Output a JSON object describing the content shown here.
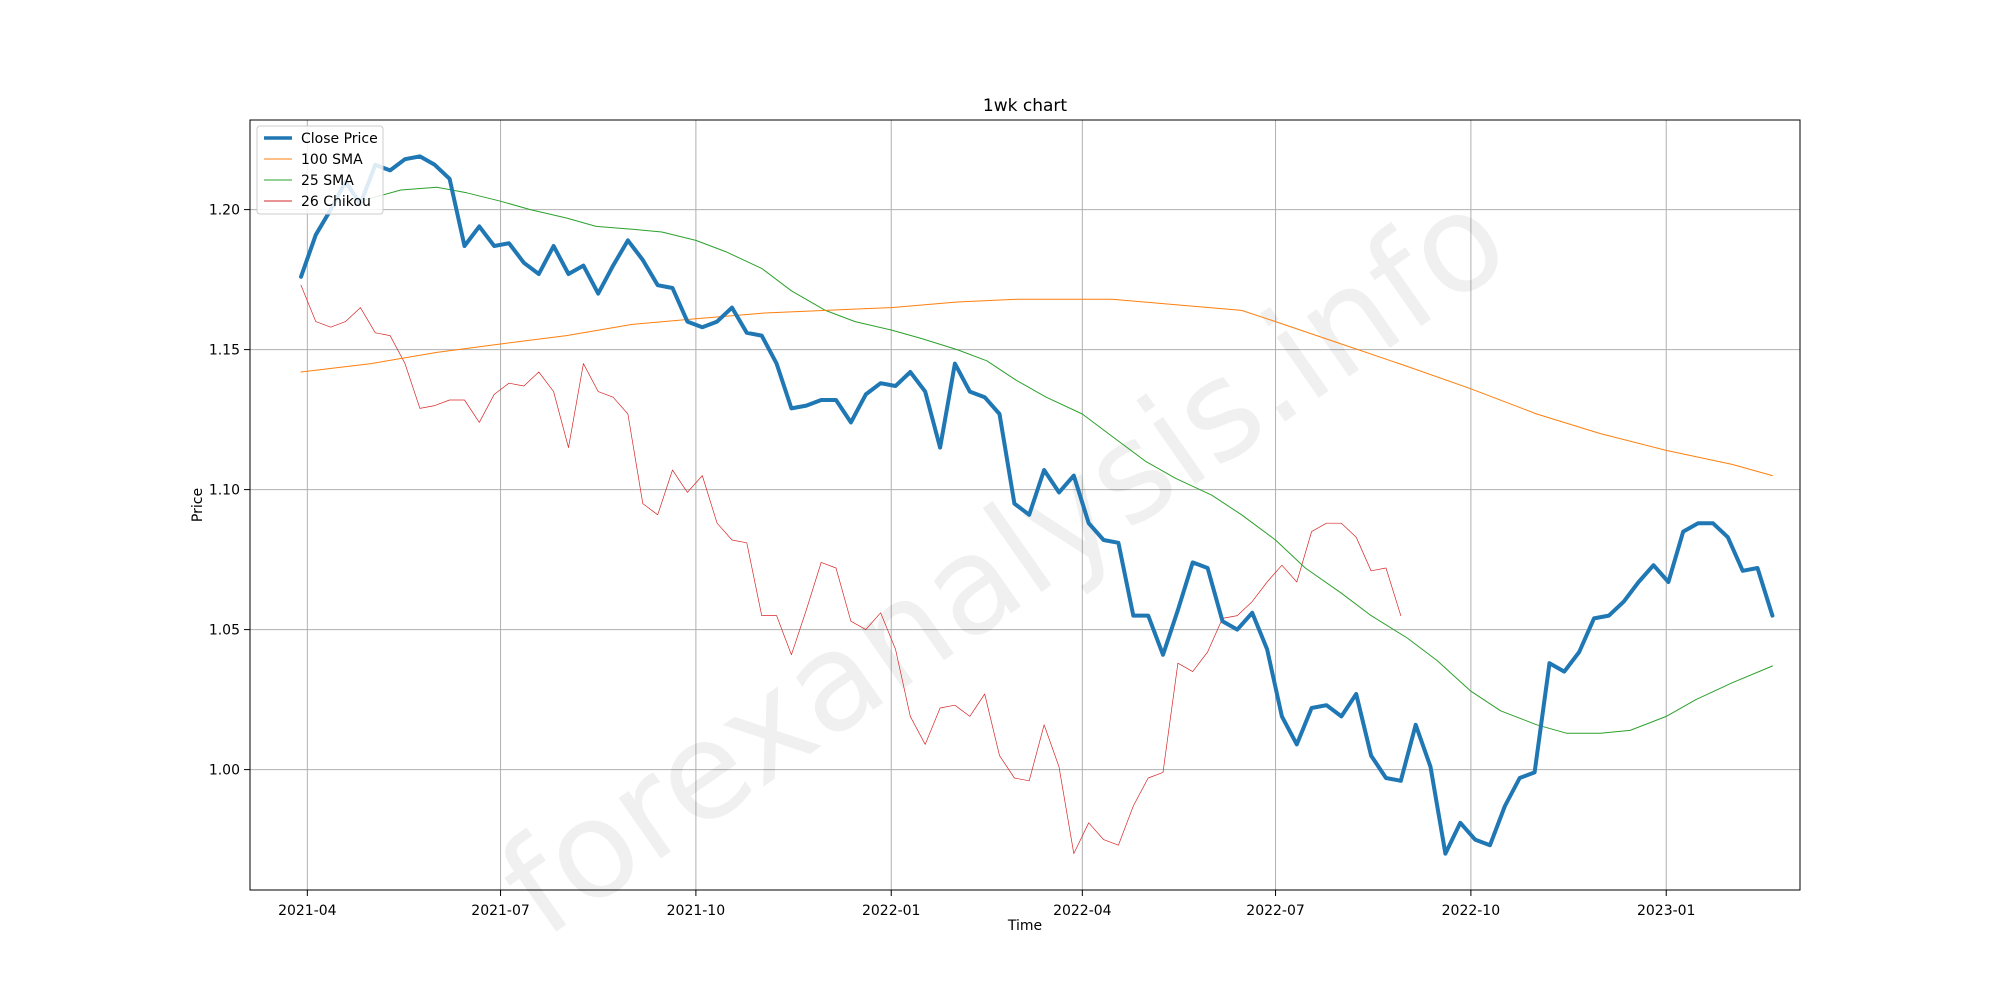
{
  "watermark": "forexanalysis.info",
  "colors": {
    "close": "#1f77b4",
    "sma100": "#ff7f0e",
    "sma25": "#2ca02c",
    "chikou": "#d62728",
    "grid": "#b0b0b0"
  },
  "chart_data": {
    "type": "line",
    "title": "1wk chart",
    "xlabel": "Time",
    "ylabel": "Price",
    "x_axis": {
      "type": "date",
      "range": [
        "2021-03-05",
        "2023-03-05"
      ],
      "ticks": [
        "2021-04-01",
        "2021-07-01",
        "2021-10-01",
        "2022-01-01",
        "2022-04-01",
        "2022-07-01",
        "2022-10-01",
        "2023-01-01"
      ],
      "tick_labels": [
        "2021-04",
        "2021-07",
        "2021-10",
        "2022-01",
        "2022-04",
        "2022-07",
        "2022-10",
        "2023-01"
      ]
    },
    "y_axis": {
      "range": [
        0.957,
        1.232
      ],
      "ticks": [
        1.0,
        1.05,
        1.1,
        1.15,
        1.2
      ],
      "tick_labels": [
        "1.00",
        "1.05",
        "1.10",
        "1.15",
        "1.20"
      ]
    },
    "grid": true,
    "legend": "top-left",
    "series": [
      {
        "name": "Close Price",
        "color_key": "close",
        "dates": [
          "2021-03-29",
          "2021-04-05",
          "2021-04-12",
          "2021-04-19",
          "2021-04-26",
          "2021-05-03",
          "2021-05-10",
          "2021-05-17",
          "2021-05-24",
          "2021-05-31",
          "2021-06-07",
          "2021-06-14",
          "2021-06-21",
          "2021-06-28",
          "2021-07-05",
          "2021-07-12",
          "2021-07-19",
          "2021-07-26",
          "2021-08-02",
          "2021-08-09",
          "2021-08-16",
          "2021-08-23",
          "2021-08-30",
          "2021-09-06",
          "2021-09-13",
          "2021-09-20",
          "2021-09-27",
          "2021-10-04",
          "2021-10-11",
          "2021-10-18",
          "2021-10-25",
          "2021-11-01",
          "2021-11-08",
          "2021-11-15",
          "2021-11-22",
          "2021-11-29",
          "2021-12-06",
          "2021-12-13",
          "2021-12-20",
          "2021-12-27",
          "2022-01-03",
          "2022-01-10",
          "2022-01-17",
          "2022-01-24",
          "2022-01-31",
          "2022-02-07",
          "2022-02-14",
          "2022-02-21",
          "2022-02-28",
          "2022-03-07",
          "2022-03-14",
          "2022-03-21",
          "2022-03-28",
          "2022-04-04",
          "2022-04-11",
          "2022-04-18",
          "2022-04-25",
          "2022-05-02",
          "2022-05-09",
          "2022-05-16",
          "2022-05-23",
          "2022-05-30",
          "2022-06-06",
          "2022-06-13",
          "2022-06-20",
          "2022-06-27",
          "2022-07-04",
          "2022-07-11",
          "2022-07-18",
          "2022-07-25",
          "2022-08-01",
          "2022-08-08",
          "2022-08-15",
          "2022-08-22",
          "2022-08-29",
          "2022-09-05",
          "2022-09-12",
          "2022-09-19",
          "2022-09-26",
          "2022-10-03",
          "2022-10-10",
          "2022-10-17",
          "2022-10-24",
          "2022-10-31",
          "2022-11-07",
          "2022-11-14",
          "2022-11-21",
          "2022-11-28",
          "2022-12-05",
          "2022-12-12",
          "2022-12-19",
          "2022-12-26",
          "2023-01-02",
          "2023-01-09",
          "2023-01-16",
          "2023-01-23",
          "2023-01-30",
          "2023-02-06",
          "2023-02-13",
          "2023-02-20"
        ],
        "values": [
          1.176,
          1.191,
          1.2,
          1.21,
          1.202,
          1.216,
          1.214,
          1.218,
          1.219,
          1.216,
          1.211,
          1.187,
          1.194,
          1.187,
          1.188,
          1.181,
          1.177,
          1.187,
          1.177,
          1.18,
          1.17,
          1.18,
          1.189,
          1.182,
          1.173,
          1.172,
          1.16,
          1.158,
          1.16,
          1.165,
          1.156,
          1.155,
          1.145,
          1.129,
          1.13,
          1.132,
          1.132,
          1.124,
          1.134,
          1.138,
          1.137,
          1.142,
          1.135,
          1.115,
          1.145,
          1.135,
          1.133,
          1.127,
          1.095,
          1.091,
          1.107,
          1.099,
          1.105,
          1.088,
          1.082,
          1.081,
          1.055,
          1.055,
          1.041,
          1.057,
          1.074,
          1.072,
          1.053,
          1.05,
          1.056,
          1.043,
          1.019,
          1.009,
          1.022,
          1.023,
          1.019,
          1.027,
          1.005,
          0.997,
          0.996,
          1.016,
          1.001,
          0.97,
          0.981,
          0.975,
          0.973,
          0.987,
          0.997,
          0.999,
          1.038,
          1.035,
          1.042,
          1.054,
          1.055,
          1.06,
          1.067,
          1.073,
          1.067,
          1.085,
          1.088,
          1.088,
          1.083,
          1.071,
          1.072,
          1.055
        ]
      },
      {
        "name": "100 SMA",
        "color_key": "sma100",
        "dates": [
          "2021-03-29",
          "2021-05-01",
          "2021-06-01",
          "2021-07-01",
          "2021-08-01",
          "2021-09-01",
          "2021-10-01",
          "2021-11-01",
          "2021-12-01",
          "2022-01-01",
          "2022-02-01",
          "2022-03-01",
          "2022-03-25",
          "2022-04-15",
          "2022-05-15",
          "2022-06-15",
          "2022-07-01",
          "2022-08-01",
          "2022-09-01",
          "2022-10-01",
          "2022-11-01",
          "2022-12-01",
          "2023-01-01",
          "2023-02-01",
          "2023-02-20"
        ],
        "values": [
          1.142,
          1.145,
          1.149,
          1.152,
          1.155,
          1.159,
          1.161,
          1.163,
          1.164,
          1.165,
          1.167,
          1.168,
          1.168,
          1.168,
          1.166,
          1.164,
          1.16,
          1.152,
          1.144,
          1.136,
          1.127,
          1.12,
          1.114,
          1.109,
          1.105
        ]
      },
      {
        "name": "25 SMA",
        "color_key": "sma25",
        "dates": [
          "2021-04-26",
          "2021-05-15",
          "2021-06-01",
          "2021-06-15",
          "2021-07-01",
          "2021-07-15",
          "2021-08-01",
          "2021-08-15",
          "2021-09-01",
          "2021-09-15",
          "2021-10-01",
          "2021-10-15",
          "2021-11-01",
          "2021-11-15",
          "2021-12-01",
          "2021-12-15",
          "2022-01-01",
          "2022-01-15",
          "2022-02-01",
          "2022-02-15",
          "2022-03-01",
          "2022-03-15",
          "2022-04-01",
          "2022-04-15",
          "2022-05-01",
          "2022-05-15",
          "2022-06-01",
          "2022-06-15",
          "2022-07-01",
          "2022-07-15",
          "2022-08-01",
          "2022-08-15",
          "2022-09-01",
          "2022-09-15",
          "2022-10-01",
          "2022-10-15",
          "2022-11-01",
          "2022-11-15",
          "2022-12-01",
          "2022-12-15",
          "2023-01-01",
          "2023-01-15",
          "2023-02-01",
          "2023-02-20"
        ],
        "values": [
          1.203,
          1.207,
          1.208,
          1.206,
          1.203,
          1.2,
          1.197,
          1.194,
          1.193,
          1.192,
          1.189,
          1.185,
          1.179,
          1.171,
          1.164,
          1.16,
          1.157,
          1.154,
          1.15,
          1.146,
          1.139,
          1.133,
          1.127,
          1.119,
          1.11,
          1.104,
          1.098,
          1.091,
          1.082,
          1.072,
          1.063,
          1.055,
          1.047,
          1.039,
          1.028,
          1.021,
          1.016,
          1.013,
          1.013,
          1.014,
          1.019,
          1.025,
          1.031,
          1.037
        ]
      },
      {
        "name": "26 Chikou",
        "color_key": "chikou",
        "dates": [
          "2021-03-29",
          "2021-04-05",
          "2021-04-12",
          "2021-04-19",
          "2021-04-26",
          "2021-05-03",
          "2021-05-10",
          "2021-05-17",
          "2021-05-24",
          "2021-05-31",
          "2021-06-07",
          "2021-06-14",
          "2021-06-21",
          "2021-06-28",
          "2021-07-05",
          "2021-07-12",
          "2021-07-19",
          "2021-07-26",
          "2021-08-02",
          "2021-08-09",
          "2021-08-16",
          "2021-08-23",
          "2021-08-30",
          "2021-09-06",
          "2021-09-13",
          "2021-09-20",
          "2021-09-27",
          "2021-10-04",
          "2021-10-11",
          "2021-10-18",
          "2021-10-25",
          "2021-11-01",
          "2021-11-08",
          "2021-11-15",
          "2021-11-22",
          "2021-11-29",
          "2021-12-06",
          "2021-12-13",
          "2021-12-20",
          "2021-12-27",
          "2022-01-03",
          "2022-01-10",
          "2022-01-17",
          "2022-01-24",
          "2022-01-31",
          "2022-02-07",
          "2022-02-14",
          "2022-02-21",
          "2022-02-28",
          "2022-03-07",
          "2022-03-14",
          "2022-03-21",
          "2022-03-28",
          "2022-04-04",
          "2022-04-11",
          "2022-04-18",
          "2022-04-25",
          "2022-05-02",
          "2022-05-09",
          "2022-05-16",
          "2022-05-23",
          "2022-05-30",
          "2022-06-06",
          "2022-06-13",
          "2022-06-20",
          "2022-06-27",
          "2022-07-04",
          "2022-07-11",
          "2022-07-18",
          "2022-07-25",
          "2022-08-01",
          "2022-08-08",
          "2022-08-15",
          "2022-08-22",
          "2022-08-29"
        ],
        "values": [
          1.173,
          1.16,
          1.158,
          1.16,
          1.165,
          1.156,
          1.155,
          1.145,
          1.129,
          1.13,
          1.132,
          1.132,
          1.124,
          1.134,
          1.138,
          1.137,
          1.142,
          1.135,
          1.115,
          1.145,
          1.135,
          1.133,
          1.127,
          1.095,
          1.091,
          1.107,
          1.099,
          1.105,
          1.088,
          1.082,
          1.081,
          1.055,
          1.055,
          1.041,
          1.057,
          1.074,
          1.072,
          1.053,
          1.05,
          1.056,
          1.043,
          1.019,
          1.009,
          1.022,
          1.023,
          1.019,
          1.027,
          1.005,
          0.997,
          0.996,
          1.016,
          1.001,
          0.97,
          0.981,
          0.975,
          0.973,
          0.987,
          0.997,
          0.999,
          1.038,
          1.035,
          1.042,
          1.054,
          1.055,
          1.06,
          1.067,
          1.073,
          1.067,
          1.085,
          1.088,
          1.088,
          1.083,
          1.071,
          1.072,
          1.055
        ]
      }
    ]
  }
}
